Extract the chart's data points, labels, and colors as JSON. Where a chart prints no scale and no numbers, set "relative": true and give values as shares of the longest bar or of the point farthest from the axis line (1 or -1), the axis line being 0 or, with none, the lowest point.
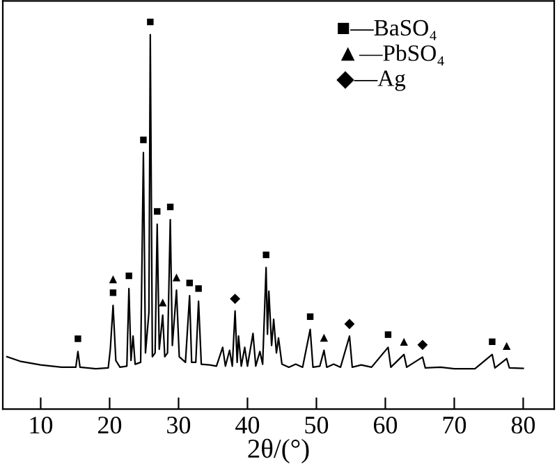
{
  "chart_data": {
    "type": "line",
    "relative": true,
    "xlabel": "2θ/(°)",
    "xlim": [
      4.5,
      84.5
    ],
    "xticks": [
      10,
      20,
      30,
      40,
      50,
      60,
      70,
      80
    ],
    "tick_labels": "x",
    "grid": false,
    "series": [
      {
        "color": "#000000",
        "marker": "none",
        "x": [
          5.1,
          7,
          10,
          13,
          15.1,
          15.4,
          15.7,
          18,
          19.8,
          20.1,
          20.5,
          20.9,
          21.5,
          22.5,
          22.8,
          23.1,
          23.4,
          23.7,
          24.5,
          24.9,
          25.2,
          25.7,
          25.9,
          26.2,
          26.6,
          26.9,
          27.2,
          27.7,
          28.0,
          28.4,
          28.8,
          29.1,
          29.7,
          30.1,
          31.0,
          31.6,
          31.9,
          32.5,
          32.9,
          33.3,
          34.5,
          35.5,
          36.4,
          36.8,
          37.4,
          37.8,
          38.2,
          38.5,
          38.7,
          39.1,
          39.6,
          40.0,
          40.8,
          41.2,
          41.8,
          42.2,
          42.7,
          42.9,
          43.1,
          43.5,
          43.8,
          44.2,
          44.5,
          45,
          46,
          47,
          48,
          49.1,
          49.5,
          50.5,
          51.1,
          51.5,
          52.5,
          53.5,
          54.8,
          55.2,
          56.5,
          58,
          60.4,
          60.8,
          62.7,
          63.1,
          65.4,
          65.8,
          68,
          70,
          73,
          75.5,
          75.9,
          77.6,
          78,
          80
        ],
        "values": [
          0.14,
          0.128,
          0.118,
          0.112,
          0.112,
          0.154,
          0.112,
          0.108,
          0.11,
          0.16,
          0.277,
          0.13,
          0.112,
          0.115,
          0.322,
          0.13,
          0.195,
          0.12,
          0.125,
          0.685,
          0.15,
          0.258,
          1.0,
          0.14,
          0.15,
          0.494,
          0.16,
          0.251,
          0.14,
          0.15,
          0.506,
          0.17,
          0.318,
          0.14,
          0.125,
          0.303,
          0.125,
          0.125,
          0.288,
          0.12,
          0.118,
          0.115,
          0.165,
          0.115,
          0.157,
          0.115,
          0.262,
          0.125,
          0.195,
          0.115,
          0.165,
          0.115,
          0.202,
          0.115,
          0.154,
          0.12,
          0.378,
          0.2,
          0.315,
          0.17,
          0.24,
          0.15,
          0.19,
          0.12,
          0.112,
          0.12,
          0.112,
          0.213,
          0.112,
          0.115,
          0.157,
          0.112,
          0.12,
          0.112,
          0.195,
          0.112,
          0.118,
          0.112,
          0.165,
          0.112,
          0.146,
          0.112,
          0.139,
          0.11,
          0.112,
          0.108,
          0.108,
          0.146,
          0.11,
          0.135,
          0.11,
          0.109
        ]
      }
    ],
    "annotations": [
      "■—BaSO₄",
      "▲—PbSO₄",
      "◆—Ag",
      {
        "text": "■",
        "x": 15.4,
        "y": 0.154
      },
      {
        "text": "■",
        "x": 20.5,
        "y": 0.277
      },
      {
        "text": "▲",
        "x": 20.5,
        "y": 0.277
      },
      {
        "text": "■",
        "x": 22.8,
        "y": 0.322
      },
      {
        "text": "■",
        "x": 24.9,
        "y": 0.685
      },
      {
        "text": "■",
        "x": 25.9,
        "y": 1.0
      },
      {
        "text": "■",
        "x": 26.9,
        "y": 0.494
      },
      {
        "text": "▲",
        "x": 27.7,
        "y": 0.251
      },
      {
        "text": "■",
        "x": 28.8,
        "y": 0.506
      },
      {
        "text": "▲",
        "x": 29.7,
        "y": 0.318
      },
      {
        "text": "■",
        "x": 31.6,
        "y": 0.303
      },
      {
        "text": "■",
        "x": 32.9,
        "y": 0.288
      },
      {
        "text": "◆",
        "x": 38.2,
        "y": 0.262
      },
      {
        "text": "■",
        "x": 42.7,
        "y": 0.378
      },
      {
        "text": "■",
        "x": 49.1,
        "y": 0.213
      },
      {
        "text": "▲",
        "x": 51.1,
        "y": 0.157
      },
      {
        "text": "◆",
        "x": 54.8,
        "y": 0.195
      },
      {
        "text": "■",
        "x": 60.4,
        "y": 0.165
      },
      {
        "text": "▲",
        "x": 62.7,
        "y": 0.146
      },
      {
        "text": "◆",
        "x": 65.4,
        "y": 0.139
      },
      {
        "text": "■",
        "x": 75.5,
        "y": 0.146
      },
      {
        "text": "▲",
        "x": 77.6,
        "y": 0.135
      }
    ]
  }
}
